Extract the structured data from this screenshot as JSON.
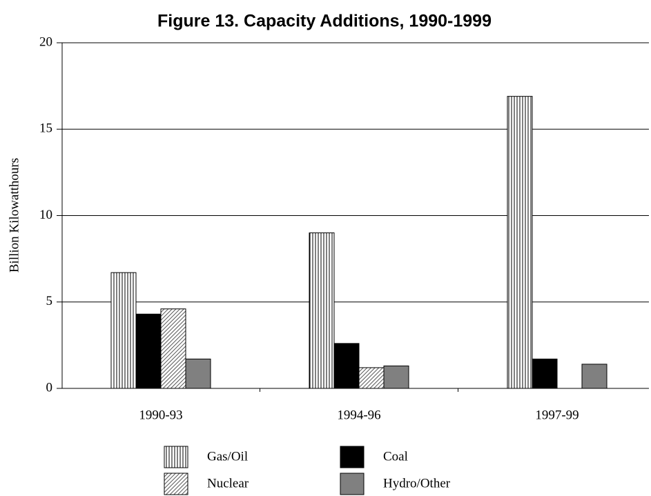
{
  "chart_data": {
    "type": "bar",
    "title": "Figure 13.  Capacity Additions, 1990-1999",
    "y_label": "Billion Kilowatthours",
    "categories": [
      "1990-93",
      "1994-96",
      "1997-99"
    ],
    "series": [
      {
        "name": "Gas/Oil",
        "color": "#000000",
        "pattern": "vertical",
        "values": [
          6.7,
          9.0,
          16.9
        ]
      },
      {
        "name": "Coal",
        "color": "#000000",
        "pattern": "solid",
        "values": [
          4.3,
          2.6,
          1.7
        ]
      },
      {
        "name": "Nuclear",
        "color": "#000000",
        "pattern": "diagonal",
        "values": [
          4.6,
          1.2,
          0
        ]
      },
      {
        "name": "Hydro/Other",
        "color": "#808080",
        "pattern": "solid",
        "values": [
          1.7,
          1.3,
          1.4
        ]
      }
    ],
    "ylim": [
      0,
      20
    ],
    "yticks": [
      0,
      5,
      10,
      15,
      20
    ],
    "grid": true
  }
}
